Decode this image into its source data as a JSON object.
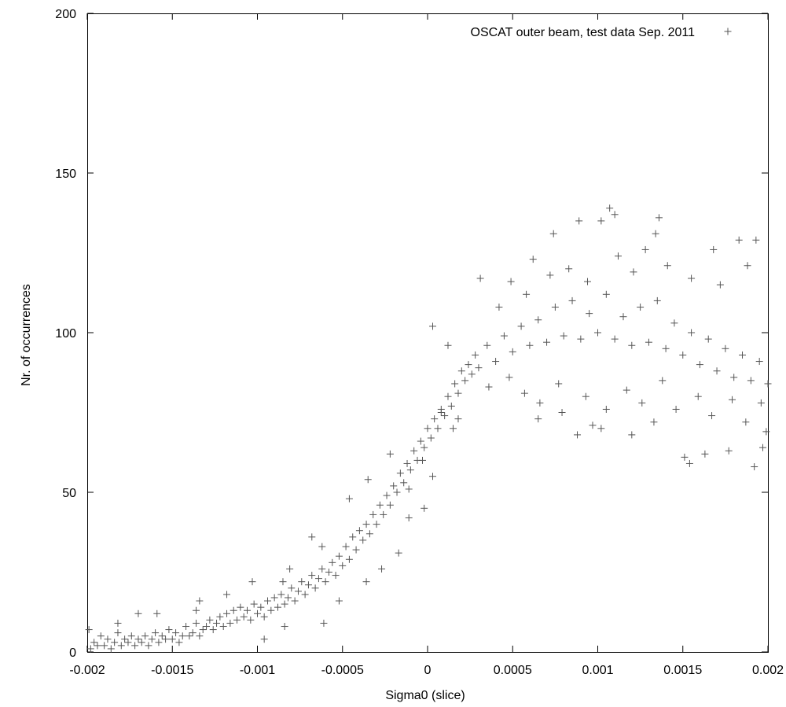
{
  "chart_data": {
    "type": "scatter",
    "xlabel": "Sigma0 (slice)",
    "ylabel": "Nr. of occurrences",
    "xlim": [
      -0.002,
      0.002
    ],
    "ylim": [
      0,
      200
    ],
    "x_ticks": [
      "-0.002",
      "-0.0015",
      "-0.001",
      "-0.0005",
      "0",
      "0.0005",
      "0.001",
      "0.0015",
      "0.002"
    ],
    "y_ticks": [
      "0",
      "50",
      "100",
      "150",
      "200"
    ],
    "grid": false,
    "legend_position": "top-right",
    "marker": "plus",
    "series": [
      {
        "name": "OSCAT outer beam, test data Sep. 2011",
        "color": "#555555",
        "points": [
          [
            -0.00198,
            1
          ],
          [
            -0.00196,
            3
          ],
          [
            -0.00194,
            2
          ],
          [
            -0.00192,
            5
          ],
          [
            -0.0019,
            2
          ],
          [
            -0.00188,
            4
          ],
          [
            -0.00186,
            1
          ],
          [
            -0.00184,
            3
          ],
          [
            -0.00182,
            6
          ],
          [
            -0.0018,
            2
          ],
          [
            -0.00178,
            4
          ],
          [
            -0.00176,
            3
          ],
          [
            -0.00174,
            5
          ],
          [
            -0.00172,
            2
          ],
          [
            -0.0017,
            4
          ],
          [
            -0.00168,
            3
          ],
          [
            -0.00166,
            5
          ],
          [
            -0.00164,
            2
          ],
          [
            -0.00162,
            4
          ],
          [
            -0.0016,
            6
          ],
          [
            -0.00158,
            3
          ],
          [
            -0.00156,
            5
          ],
          [
            -0.00154,
            4
          ],
          [
            -0.00152,
            7
          ],
          [
            -0.0015,
            4
          ],
          [
            -0.00148,
            6
          ],
          [
            -0.00146,
            3
          ],
          [
            -0.00144,
            5
          ],
          [
            -0.00142,
            8
          ],
          [
            -0.0014,
            5
          ],
          [
            -0.00138,
            6
          ],
          [
            -0.00136,
            9
          ],
          [
            -0.00134,
            5
          ],
          [
            -0.00132,
            7
          ],
          [
            -0.0013,
            8
          ],
          [
            -0.00128,
            10
          ],
          [
            -0.00126,
            7
          ],
          [
            -0.00124,
            9
          ],
          [
            -0.00122,
            11
          ],
          [
            -0.0012,
            8
          ],
          [
            -0.00118,
            12
          ],
          [
            -0.00116,
            9
          ],
          [
            -0.00114,
            13
          ],
          [
            -0.00112,
            10
          ],
          [
            -0.0011,
            14
          ],
          [
            -0.00108,
            11
          ],
          [
            -0.00106,
            13
          ],
          [
            -0.00104,
            10
          ],
          [
            -0.00102,
            15
          ],
          [
            -0.001,
            12
          ],
          [
            -0.00098,
            14
          ],
          [
            -0.00096,
            11
          ],
          [
            -0.00094,
            16
          ],
          [
            -0.00092,
            13
          ],
          [
            -0.0009,
            17
          ],
          [
            -0.00088,
            14
          ],
          [
            -0.00086,
            18
          ],
          [
            -0.00084,
            15
          ],
          [
            -0.00082,
            17
          ],
          [
            -0.0008,
            20
          ],
          [
            -0.00078,
            16
          ],
          [
            -0.00076,
            19
          ],
          [
            -0.00074,
            22
          ],
          [
            -0.00072,
            18
          ],
          [
            -0.0007,
            21
          ],
          [
            -0.00068,
            24
          ],
          [
            -0.00066,
            20
          ],
          [
            -0.00064,
            23
          ],
          [
            -0.00062,
            26
          ],
          [
            -0.0006,
            22
          ],
          [
            -0.00058,
            25
          ],
          [
            -0.00056,
            28
          ],
          [
            -0.00054,
            24
          ],
          [
            -0.00052,
            30
          ],
          [
            -0.0005,
            27
          ],
          [
            -0.00048,
            33
          ],
          [
            -0.00046,
            29
          ],
          [
            -0.00044,
            36
          ],
          [
            -0.00042,
            32
          ],
          [
            -0.0004,
            38
          ],
          [
            -0.00038,
            35
          ],
          [
            -0.00036,
            40
          ],
          [
            -0.00034,
            37
          ],
          [
            -0.00032,
            43
          ],
          [
            -0.0003,
            40
          ],
          [
            -0.00028,
            46
          ],
          [
            -0.00026,
            43
          ],
          [
            -0.00024,
            49
          ],
          [
            -0.00022,
            46
          ],
          [
            -0.0002,
            52
          ],
          [
            -0.00018,
            50
          ],
          [
            -0.00016,
            56
          ],
          [
            -0.00014,
            53
          ],
          [
            -0.00012,
            59
          ],
          [
            -0.0001,
            57
          ],
          [
            -8e-05,
            63
          ],
          [
            -6e-05,
            60
          ],
          [
            -4e-05,
            66
          ],
          [
            -2e-05,
            64
          ],
          [
            0.0,
            70
          ],
          [
            2e-05,
            67
          ],
          [
            4e-05,
            73
          ],
          [
            6e-05,
            70
          ],
          [
            8e-05,
            76
          ],
          [
            0.0001,
            74
          ],
          [
            0.00012,
            80
          ],
          [
            0.00014,
            77
          ],
          [
            0.00016,
            84
          ],
          [
            0.00018,
            81
          ],
          [
            0.0002,
            88
          ],
          [
            0.00022,
            85
          ],
          [
            0.00024,
            90
          ],
          [
            0.00026,
            87
          ],
          [
            0.00028,
            93
          ],
          [
            0.0003,
            89
          ],
          [
            0.00035,
            96
          ],
          [
            0.0004,
            91
          ],
          [
            0.00045,
            99
          ],
          [
            0.0005,
            94
          ],
          [
            0.00055,
            102
          ],
          [
            0.0006,
            96
          ],
          [
            0.00065,
            104
          ],
          [
            0.0007,
            97
          ],
          [
            0.00075,
            108
          ],
          [
            0.0008,
            99
          ],
          [
            0.00085,
            110
          ],
          [
            0.0009,
            98
          ],
          [
            0.00095,
            106
          ],
          [
            0.001,
            100
          ],
          [
            0.00105,
            112
          ],
          [
            0.0011,
            98
          ],
          [
            0.00115,
            105
          ],
          [
            0.0012,
            96
          ],
          [
            0.00125,
            108
          ],
          [
            0.0013,
            97
          ],
          [
            0.00135,
            110
          ],
          [
            0.0014,
            95
          ],
          [
            0.00145,
            103
          ],
          [
            0.0015,
            93
          ],
          [
            0.00155,
            100
          ],
          [
            0.0016,
            90
          ],
          [
            0.00165,
            98
          ],
          [
            0.0017,
            88
          ],
          [
            0.00175,
            95
          ],
          [
            0.0018,
            86
          ],
          [
            0.00185,
            93
          ],
          [
            0.0019,
            85
          ],
          [
            0.00195,
            91
          ],
          [
            0.002,
            84
          ],
          [
            0.00062,
            123
          ],
          [
            0.00074,
            131
          ],
          [
            0.00089,
            135
          ],
          [
            0.00102,
            135
          ],
          [
            0.00107,
            139
          ],
          [
            0.0011,
            137
          ],
          [
            0.00128,
            126
          ],
          [
            0.00136,
            136
          ],
          [
            0.00134,
            131
          ],
          [
            0.00168,
            126
          ],
          [
            0.00183,
            129
          ],
          [
            0.00193,
            129
          ],
          [
            0.00065,
            73
          ],
          [
            0.00079,
            75
          ],
          [
            0.00088,
            68
          ],
          [
            0.00097,
            71
          ],
          [
            0.00102,
            70
          ],
          [
            0.0012,
            68
          ],
          [
            0.00133,
            72
          ],
          [
            0.00151,
            61
          ],
          [
            0.00154,
            59
          ],
          [
            0.00163,
            62
          ],
          [
            0.00177,
            63
          ],
          [
            0.00192,
            58
          ],
          [
            0.00197,
            64
          ],
          [
            0.00199,
            69
          ],
          [
            8e-05,
            75
          ],
          [
            0.00015,
            70
          ],
          [
            0.00018,
            73
          ],
          [
            3e-05,
            102
          ],
          [
            0.00012,
            96
          ],
          [
            -3e-05,
            60
          ],
          [
            -2e-05,
            45
          ],
          [
            3e-05,
            55
          ],
          [
            -0.00011,
            51
          ],
          [
            -0.00022,
            62
          ],
          [
            -0.00035,
            54
          ],
          [
            -0.00046,
            48
          ],
          [
            -0.00062,
            33
          ],
          [
            -0.00068,
            36
          ],
          [
            -0.00081,
            26
          ],
          [
            -0.00085,
            22
          ],
          [
            -0.00103,
            22
          ],
          [
            -0.00118,
            18
          ],
          [
            -0.00136,
            13
          ],
          [
            -0.00159,
            12
          ],
          [
            -0.0017,
            12
          ],
          [
            -0.00182,
            9
          ],
          [
            -0.00199,
            7
          ],
          [
            -0.00134,
            16
          ],
          [
            -0.00096,
            4
          ],
          [
            -0.00084,
            8
          ],
          [
            -0.00061,
            9
          ],
          [
            -0.00052,
            16
          ],
          [
            -0.00036,
            22
          ],
          [
            -0.00027,
            26
          ],
          [
            -0.00017,
            31
          ],
          [
            -0.00011,
            42
          ],
          [
            0.00042,
            108
          ],
          [
            0.00049,
            116
          ],
          [
            0.00058,
            112
          ],
          [
            0.00072,
            118
          ],
          [
            0.00083,
            120
          ],
          [
            0.00094,
            116
          ],
          [
            0.00112,
            124
          ],
          [
            0.00121,
            119
          ],
          [
            0.00141,
            121
          ],
          [
            0.00155,
            117
          ],
          [
            0.00172,
            115
          ],
          [
            0.00188,
            121
          ],
          [
            0.00031,
            117
          ],
          [
            0.00036,
            83
          ],
          [
            0.00048,
            86
          ],
          [
            0.00057,
            81
          ],
          [
            0.00066,
            78
          ],
          [
            0.00077,
            84
          ],
          [
            0.00093,
            80
          ],
          [
            0.00105,
            76
          ],
          [
            0.00117,
            82
          ],
          [
            0.00126,
            78
          ],
          [
            0.00138,
            85
          ],
          [
            0.00146,
            76
          ],
          [
            0.00159,
            80
          ],
          [
            0.00167,
            74
          ],
          [
            0.00179,
            79
          ],
          [
            0.00187,
            72
          ],
          [
            0.00196,
            78
          ]
        ]
      }
    ]
  }
}
